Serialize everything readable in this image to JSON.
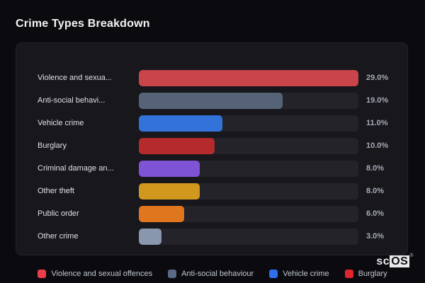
{
  "page_title": "Crime Types Breakdown",
  "chart_data": {
    "type": "bar",
    "orientation": "horizontal",
    "title": "Crime Types Breakdown",
    "categories": [
      "Violence and sexua...",
      "Anti-social behavi...",
      "Vehicle crime",
      "Burglary",
      "Criminal damage an...",
      "Other theft",
      "Public order",
      "Other crime"
    ],
    "values": [
      29.0,
      19.0,
      11.0,
      10.0,
      8.0,
      8.0,
      6.0,
      3.0
    ],
    "value_labels": [
      "29.0%",
      "19.0%",
      "11.0%",
      "10.0%",
      "8.0%",
      "8.0%",
      "6.0%",
      "3.0%"
    ],
    "bar_colors": [
      "#c9444b",
      "#566377",
      "#3372d8",
      "#b52a2c",
      "#7e53d6",
      "#d2971d",
      "#e0771f",
      "#8897ad"
    ],
    "axis_scale_max": 29.0,
    "grid": false,
    "legend_position": "bottom",
    "legend": [
      {
        "label": "Violence and sexual offences",
        "color": "#ea3e49"
      },
      {
        "label": "Anti-social behaviour",
        "color": "#5a6a85"
      },
      {
        "label": "Vehicle crime",
        "color": "#2f6fed"
      },
      {
        "label": "Burglary",
        "color": "#e0252c"
      }
    ]
  },
  "theme": {
    "page_bg": "#0b0b0f",
    "panel_bg": "#17171c",
    "track_bg": "#232329",
    "title_color": "#f4f4f6",
    "label_color": "#e0e2e6",
    "value_color": "#a7abb4"
  },
  "branding": {
    "logo_prefix": "sc",
    "logo_suffix": "OS",
    "registered_mark": "®"
  }
}
